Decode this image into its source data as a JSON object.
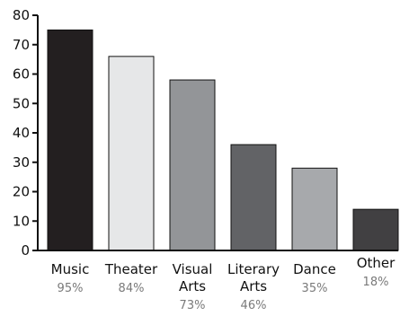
{
  "chart_data": {
    "type": "bar",
    "categories": [
      [
        "Music"
      ],
      [
        "Theater"
      ],
      [
        "Visual",
        "Arts"
      ],
      [
        "Literary",
        "Arts"
      ],
      [
        "Dance"
      ],
      [
        "Other"
      ]
    ],
    "values": [
      75,
      66,
      58,
      36,
      28,
      14
    ],
    "percent_labels": [
      "95%",
      "84%",
      "73%",
      "46%",
      "35%",
      "18%"
    ],
    "bar_colors": [
      "#231f20",
      "#e6e7e8",
      "#939598",
      "#626366",
      "#a7a9ac",
      "#414042"
    ],
    "y_ticks": [
      0,
      10,
      20,
      30,
      40,
      50,
      60,
      70,
      80
    ],
    "ylim": [
      0,
      80
    ],
    "title": "",
    "xlabel": "",
    "ylabel": "",
    "grid": false,
    "legend": "none"
  }
}
